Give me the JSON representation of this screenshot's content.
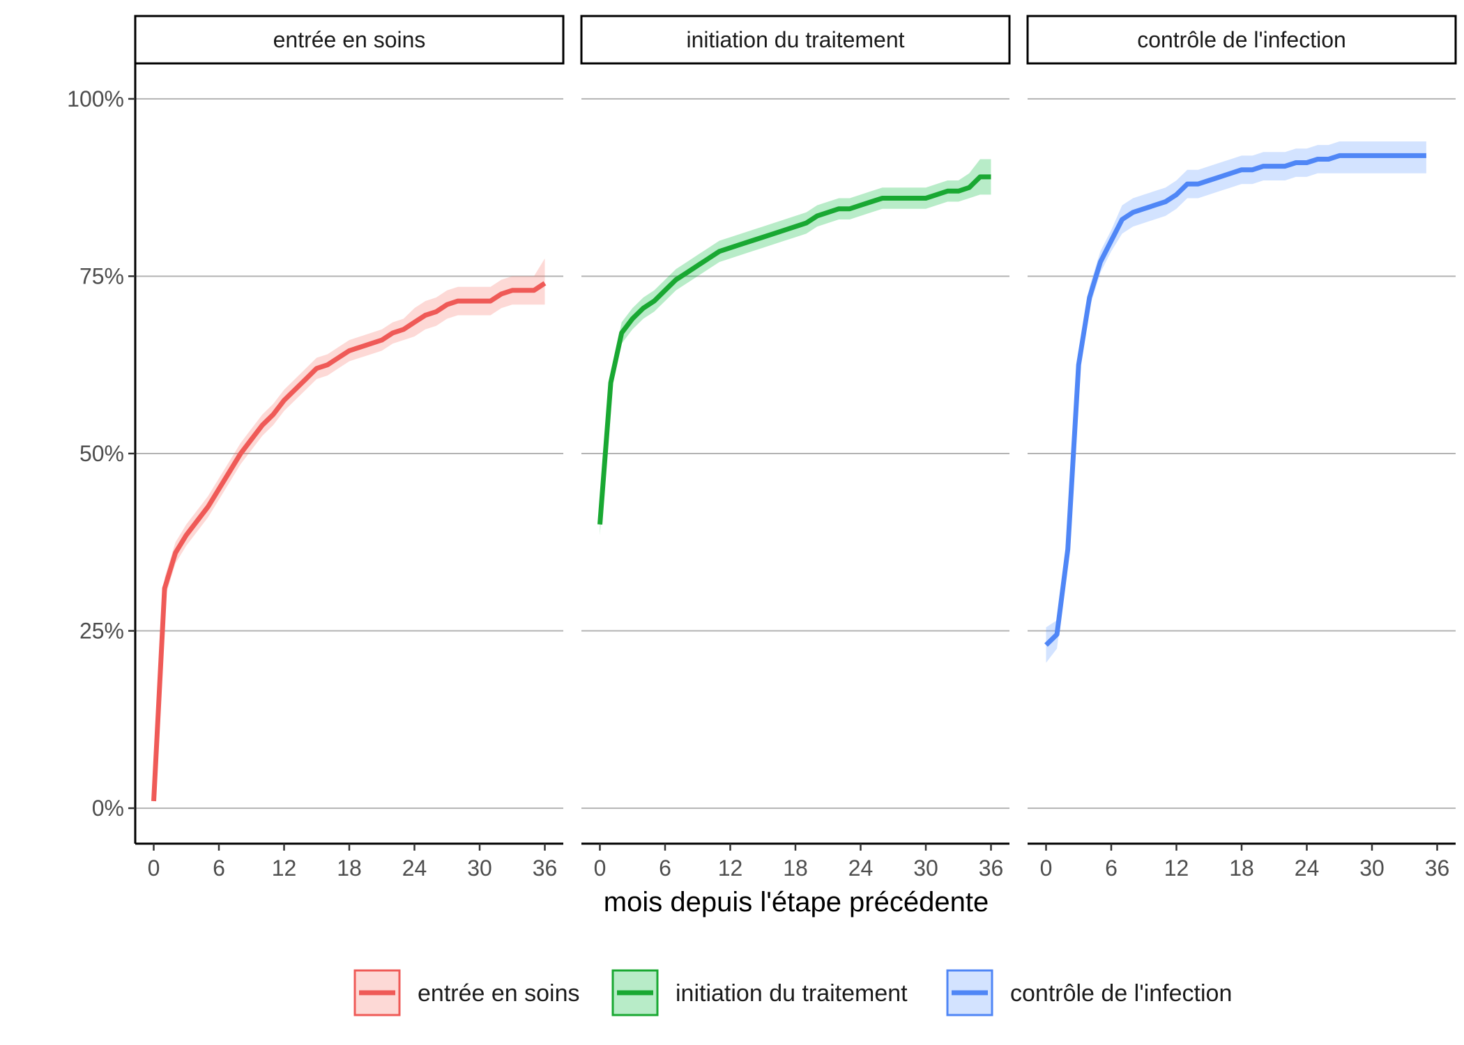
{
  "chart_data": {
    "type": "line",
    "xlabel": "mois depuis l'étape précédente",
    "ylabel": "",
    "x_ticks": [
      0,
      6,
      12,
      18,
      24,
      30,
      36
    ],
    "y_ticks": [
      0,
      0.25,
      0.5,
      0.75,
      1.0
    ],
    "y_tick_labels": [
      "0%",
      "25%",
      "50%",
      "75%",
      "100%"
    ],
    "xlim": [
      -1.7,
      37.7
    ],
    "ylim": [
      -0.05,
      1.05
    ],
    "grid": "horizontal major lines",
    "legend_position": "bottom",
    "panels": [
      {
        "title": "entrée en soins",
        "series_name": "entrée en soins",
        "color": "#F8766D",
        "line_color": "#EF5A57",
        "x": [
          0,
          1,
          2,
          3,
          4,
          5,
          6,
          7,
          8,
          9,
          10,
          11,
          12,
          13,
          14,
          15,
          16,
          17,
          18,
          19,
          20,
          21,
          22,
          23,
          24,
          25,
          26,
          27,
          28,
          29,
          30,
          31,
          32,
          33,
          34,
          35,
          36
        ],
        "y": [
          0.01,
          0.31,
          0.36,
          0.385,
          0.405,
          0.425,
          0.45,
          0.475,
          0.5,
          0.52,
          0.54,
          0.555,
          0.575,
          0.59,
          0.605,
          0.62,
          0.625,
          0.635,
          0.645,
          0.65,
          0.655,
          0.66,
          0.67,
          0.675,
          0.685,
          0.695,
          0.7,
          0.71,
          0.715,
          0.715,
          0.715,
          0.715,
          0.725,
          0.73,
          0.73,
          0.73,
          0.74
        ],
        "ci_low": [
          0.005,
          0.295,
          0.345,
          0.37,
          0.39,
          0.41,
          0.435,
          0.46,
          0.485,
          0.505,
          0.525,
          0.54,
          0.56,
          0.575,
          0.59,
          0.605,
          0.61,
          0.62,
          0.63,
          0.635,
          0.64,
          0.645,
          0.655,
          0.66,
          0.665,
          0.675,
          0.68,
          0.69,
          0.695,
          0.695,
          0.695,
          0.695,
          0.705,
          0.71,
          0.71,
          0.71,
          0.71
        ],
        "ci_high": [
          0.015,
          0.325,
          0.375,
          0.4,
          0.42,
          0.44,
          0.465,
          0.49,
          0.515,
          0.535,
          0.555,
          0.57,
          0.59,
          0.605,
          0.62,
          0.635,
          0.64,
          0.65,
          0.66,
          0.665,
          0.67,
          0.675,
          0.685,
          0.69,
          0.705,
          0.715,
          0.72,
          0.73,
          0.735,
          0.735,
          0.735,
          0.735,
          0.745,
          0.75,
          0.75,
          0.75,
          0.775
        ]
      },
      {
        "title": "initiation du traitement",
        "series_name": "initiation du traitement",
        "color": "#00BA38",
        "line_color": "#19A832",
        "x": [
          0,
          1,
          2,
          3,
          4,
          5,
          6,
          7,
          8,
          9,
          10,
          11,
          12,
          13,
          14,
          15,
          16,
          17,
          18,
          19,
          20,
          21,
          22,
          23,
          24,
          25,
          26,
          27,
          28,
          29,
          30,
          31,
          32,
          33,
          34,
          35,
          36
        ],
        "y": [
          0.4,
          0.6,
          0.67,
          0.69,
          0.705,
          0.715,
          0.73,
          0.745,
          0.755,
          0.765,
          0.775,
          0.785,
          0.79,
          0.795,
          0.8,
          0.805,
          0.81,
          0.815,
          0.82,
          0.825,
          0.835,
          0.84,
          0.845,
          0.845,
          0.85,
          0.855,
          0.86,
          0.86,
          0.86,
          0.86,
          0.86,
          0.865,
          0.87,
          0.87,
          0.875,
          0.89,
          0.89
        ],
        "ci_low": [
          0.385,
          0.585,
          0.655,
          0.675,
          0.69,
          0.7,
          0.715,
          0.73,
          0.74,
          0.75,
          0.76,
          0.77,
          0.775,
          0.78,
          0.785,
          0.79,
          0.795,
          0.8,
          0.805,
          0.81,
          0.82,
          0.825,
          0.83,
          0.83,
          0.835,
          0.84,
          0.845,
          0.845,
          0.845,
          0.845,
          0.845,
          0.85,
          0.855,
          0.855,
          0.86,
          0.865,
          0.865
        ],
        "ci_high": [
          0.415,
          0.615,
          0.685,
          0.705,
          0.72,
          0.73,
          0.745,
          0.76,
          0.77,
          0.78,
          0.79,
          0.8,
          0.805,
          0.81,
          0.815,
          0.82,
          0.825,
          0.83,
          0.835,
          0.84,
          0.85,
          0.855,
          0.86,
          0.86,
          0.865,
          0.87,
          0.875,
          0.875,
          0.875,
          0.875,
          0.875,
          0.88,
          0.885,
          0.885,
          0.895,
          0.915,
          0.915
        ]
      },
      {
        "title": "contrôle de l'infection",
        "series_name": "contrôle de l'infection",
        "color": "#619CFF",
        "line_color": "#4F86F6",
        "x": [
          0,
          1,
          2,
          3,
          4,
          5,
          6,
          7,
          8,
          9,
          10,
          11,
          12,
          13,
          14,
          15,
          16,
          17,
          18,
          19,
          20,
          21,
          22,
          23,
          24,
          25,
          26,
          27,
          28,
          29,
          30,
          31,
          32,
          33,
          34,
          35
        ],
        "y": [
          0.23,
          0.245,
          0.365,
          0.625,
          0.72,
          0.77,
          0.8,
          0.83,
          0.84,
          0.845,
          0.85,
          0.855,
          0.865,
          0.88,
          0.88,
          0.885,
          0.89,
          0.895,
          0.9,
          0.9,
          0.905,
          0.905,
          0.905,
          0.91,
          0.91,
          0.915,
          0.915,
          0.92,
          0.92,
          0.92,
          0.92,
          0.92,
          0.92,
          0.92,
          0.92,
          0.92
        ],
        "ci_low": [
          0.205,
          0.225,
          0.345,
          0.61,
          0.705,
          0.755,
          0.785,
          0.81,
          0.82,
          0.825,
          0.83,
          0.835,
          0.845,
          0.86,
          0.86,
          0.865,
          0.87,
          0.875,
          0.88,
          0.88,
          0.885,
          0.885,
          0.885,
          0.89,
          0.89,
          0.895,
          0.895,
          0.895,
          0.895,
          0.895,
          0.895,
          0.895,
          0.895,
          0.895,
          0.895,
          0.895
        ],
        "ci_high": [
          0.255,
          0.265,
          0.385,
          0.64,
          0.735,
          0.785,
          0.815,
          0.85,
          0.86,
          0.865,
          0.87,
          0.875,
          0.885,
          0.9,
          0.9,
          0.905,
          0.91,
          0.915,
          0.92,
          0.92,
          0.925,
          0.925,
          0.925,
          0.93,
          0.93,
          0.935,
          0.935,
          0.94,
          0.94,
          0.94,
          0.94,
          0.94,
          0.94,
          0.94,
          0.94,
          0.94
        ]
      }
    ]
  }
}
